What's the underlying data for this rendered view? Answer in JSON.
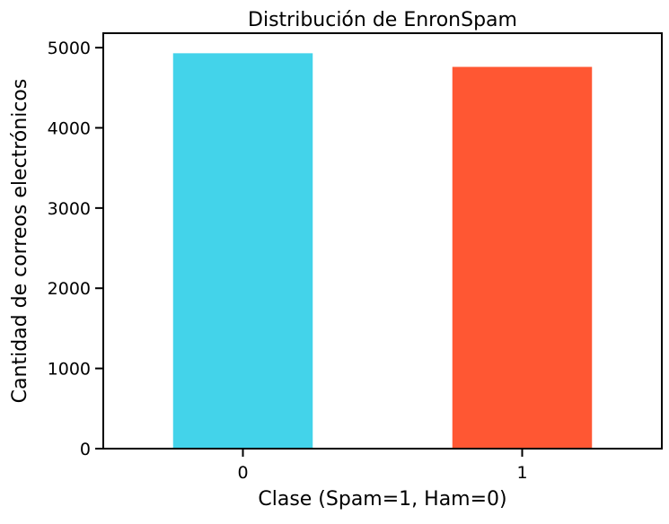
{
  "chart_data": {
    "type": "bar",
    "title": "Distribución de EnronSpam",
    "xlabel": "Clase (Spam=1, Ham=0)",
    "ylabel": "Cantidad de correos electrónicos",
    "categories": [
      "0",
      "1"
    ],
    "values": [
      4930,
      4760
    ],
    "bar_colors": [
      "#43D3EA",
      "#FF5733"
    ],
    "ylim": [
      0,
      5180
    ],
    "yticks": [
      0,
      1000,
      2000,
      3000,
      4000,
      5000
    ],
    "grid": false,
    "legend": "none"
  }
}
